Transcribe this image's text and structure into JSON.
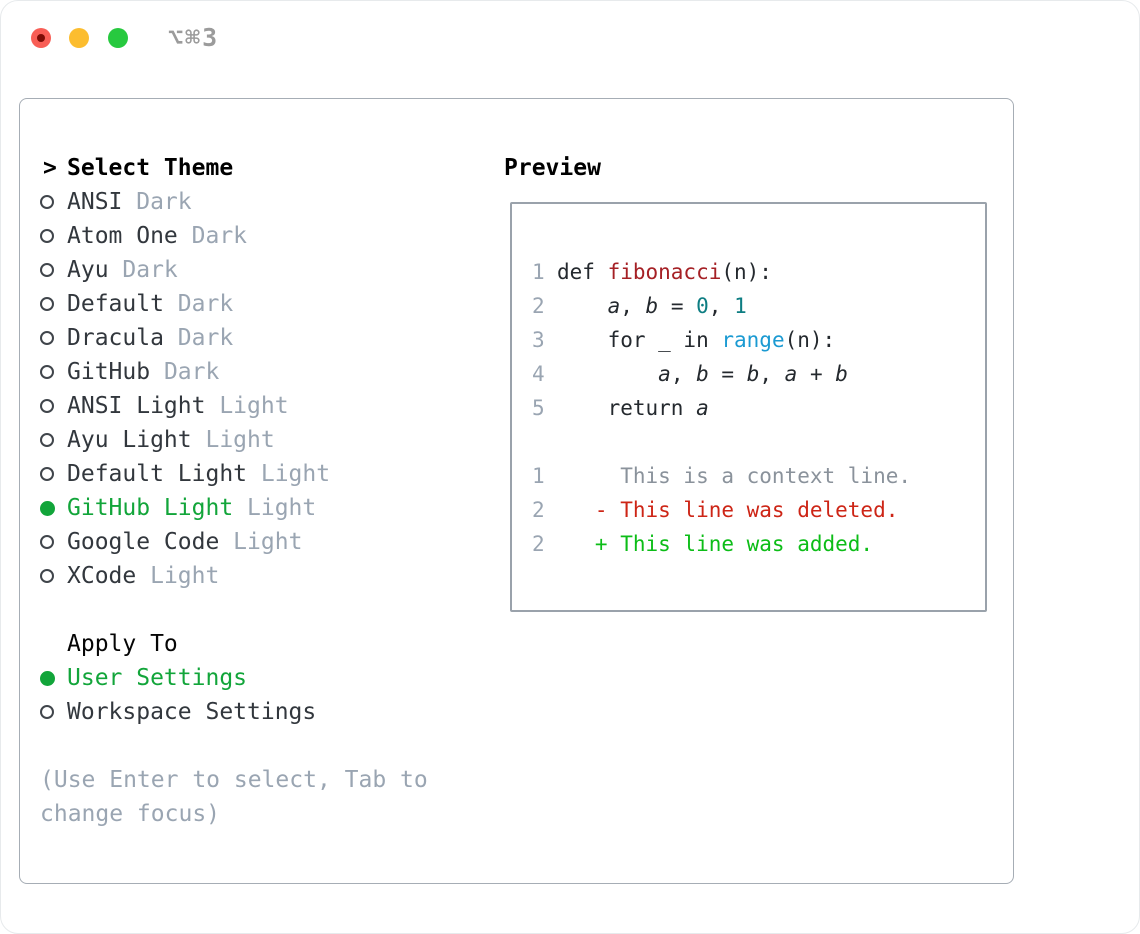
{
  "titlebar": {
    "shortcut_label": "⌥⌘3"
  },
  "colors": {
    "accent_green": "#12a53a",
    "added_green": "#0cbd17",
    "deleted_red": "#cd2516",
    "function_red": "#a52025",
    "builtin_blue": "#1b9ad2",
    "number_teal": "#0d7d82",
    "muted_gray": "#9aa5b2",
    "context_gray": "#8a929b",
    "code_text": "#24292e",
    "item_text": "#32373d",
    "traffic_red": "#f85e56",
    "traffic_yellow": "#fcbd2f",
    "traffic_green": "#27c93f"
  },
  "theme_picker": {
    "prompt": ">",
    "header": "Select Theme",
    "items": [
      {
        "name": "ANSI",
        "variant": "Dark",
        "selected": false
      },
      {
        "name": "Atom One",
        "variant": "Dark",
        "selected": false
      },
      {
        "name": "Ayu",
        "variant": "Dark",
        "selected": false
      },
      {
        "name": "Default",
        "variant": "Dark",
        "selected": false
      },
      {
        "name": "Dracula",
        "variant": "Dark",
        "selected": false
      },
      {
        "name": "GitHub",
        "variant": "Dark",
        "selected": false
      },
      {
        "name": "ANSI Light",
        "variant": "Light",
        "selected": false
      },
      {
        "name": "Ayu Light",
        "variant": "Light",
        "selected": false
      },
      {
        "name": "Default Light",
        "variant": "Light",
        "selected": false
      },
      {
        "name": "GitHub Light",
        "variant": "Light",
        "selected": true
      },
      {
        "name": "Google Code",
        "variant": "Light",
        "selected": false
      },
      {
        "name": "XCode",
        "variant": "Light",
        "selected": false
      }
    ],
    "apply_to": {
      "header": "Apply To",
      "options": [
        {
          "name": "User Settings",
          "selected": true
        },
        {
          "name": "Workspace Settings",
          "selected": false
        }
      ]
    },
    "hint": "(Use Enter to select, Tab to\nchange focus)"
  },
  "preview": {
    "header": "Preview",
    "lines": [
      {
        "ln": "1",
        "segments": [
          {
            "text": "def ",
            "style": "plain"
          },
          {
            "text": "fibonacci",
            "style": "function"
          },
          {
            "text": "(n):",
            "style": "plain"
          }
        ]
      },
      {
        "ln": "2",
        "segments": [
          {
            "text": "    ",
            "style": "plain"
          },
          {
            "text": "a",
            "style": "variable"
          },
          {
            "text": ", ",
            "style": "plain"
          },
          {
            "text": "b",
            "style": "variable"
          },
          {
            "text": " = ",
            "style": "plain"
          },
          {
            "text": "0",
            "style": "number"
          },
          {
            "text": ", ",
            "style": "plain"
          },
          {
            "text": "1",
            "style": "number"
          }
        ]
      },
      {
        "ln": "3",
        "segments": [
          {
            "text": "    for _ in ",
            "style": "plain"
          },
          {
            "text": "range",
            "style": "builtin"
          },
          {
            "text": "(n):",
            "style": "plain"
          }
        ]
      },
      {
        "ln": "4",
        "segments": [
          {
            "text": "        ",
            "style": "plain"
          },
          {
            "text": "a",
            "style": "variable"
          },
          {
            "text": ", ",
            "style": "plain"
          },
          {
            "text": "b",
            "style": "variable"
          },
          {
            "text": " = ",
            "style": "plain"
          },
          {
            "text": "b",
            "style": "variable"
          },
          {
            "text": ", ",
            "style": "plain"
          },
          {
            "text": "a",
            "style": "variable"
          },
          {
            "text": " + ",
            "style": "plain"
          },
          {
            "text": "b",
            "style": "variable"
          }
        ]
      },
      {
        "ln": "5",
        "segments": [
          {
            "text": "    return ",
            "style": "plain"
          },
          {
            "text": "a",
            "style": "variable"
          }
        ]
      },
      {
        "ln": "",
        "segments": []
      },
      {
        "ln": "1",
        "segments": [
          {
            "text": "     This is a context line.",
            "style": "context"
          }
        ]
      },
      {
        "ln": "2",
        "segments": [
          {
            "text": "   - This line was deleted.",
            "style": "deleted"
          }
        ]
      },
      {
        "ln": "2",
        "segments": [
          {
            "text": "   + This line was added.",
            "style": "added"
          }
        ]
      }
    ]
  }
}
